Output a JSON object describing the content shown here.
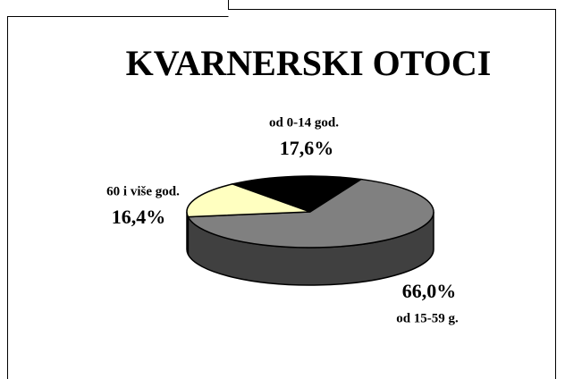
{
  "chart_data": {
    "type": "pie3d",
    "title": "KVARNERSKI OTOCI",
    "categories": [
      "od 0-14 god.",
      "od 15-59 g.",
      "60 i više god."
    ],
    "values": [
      17.6,
      66.0,
      16.4
    ],
    "value_labels": [
      "17,6%",
      "66,0%",
      "16,4%"
    ],
    "colors": [
      "#000000",
      "#808080",
      "#ffffc0"
    ]
  }
}
